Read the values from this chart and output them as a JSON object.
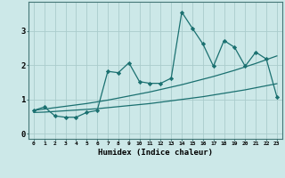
{
  "xlabel": "Humidex (Indice chaleur)",
  "ylabel": "",
  "xlim": [
    -0.5,
    23.5
  ],
  "ylim": [
    -0.15,
    3.85
  ],
  "bg_color": "#cce8e8",
  "grid_color": "#aacccc",
  "line_color": "#1a7070",
  "x_ticks": [
    0,
    1,
    2,
    3,
    4,
    5,
    6,
    7,
    8,
    9,
    10,
    11,
    12,
    13,
    14,
    15,
    16,
    17,
    18,
    19,
    20,
    21,
    22,
    23
  ],
  "y_ticks": [
    0,
    1,
    2,
    3
  ],
  "series1_x": [
    0,
    1,
    2,
    3,
    4,
    5,
    6,
    7,
    8,
    9,
    10,
    11,
    12,
    13,
    14,
    15,
    16,
    17,
    18,
    19,
    20,
    21,
    22,
    23
  ],
  "series1_y": [
    0.68,
    0.78,
    0.52,
    0.48,
    0.48,
    0.62,
    0.68,
    1.82,
    1.78,
    2.07,
    1.52,
    1.47,
    1.47,
    1.62,
    3.55,
    3.08,
    2.62,
    1.97,
    2.72,
    2.52,
    1.97,
    2.38,
    2.18,
    1.08
  ],
  "series2_x": [
    0,
    1,
    2,
    3,
    4,
    5,
    6,
    7,
    8,
    9,
    10,
    11,
    12,
    13,
    14,
    15,
    16,
    17,
    18,
    19,
    20,
    21,
    22,
    23
  ],
  "series2_y": [
    0.68,
    0.72,
    0.76,
    0.8,
    0.84,
    0.88,
    0.93,
    0.98,
    1.04,
    1.1,
    1.16,
    1.22,
    1.29,
    1.36,
    1.43,
    1.51,
    1.59,
    1.67,
    1.76,
    1.85,
    1.95,
    2.05,
    2.16,
    2.27
  ],
  "series3_x": [
    0,
    1,
    2,
    3,
    4,
    5,
    6,
    7,
    8,
    9,
    10,
    11,
    12,
    13,
    14,
    15,
    16,
    17,
    18,
    19,
    20,
    21,
    22,
    23
  ],
  "series3_y": [
    0.62,
    0.63,
    0.65,
    0.67,
    0.69,
    0.71,
    0.73,
    0.76,
    0.79,
    0.82,
    0.85,
    0.88,
    0.92,
    0.96,
    1.0,
    1.04,
    1.08,
    1.13,
    1.18,
    1.23,
    1.28,
    1.34,
    1.4,
    1.46
  ]
}
